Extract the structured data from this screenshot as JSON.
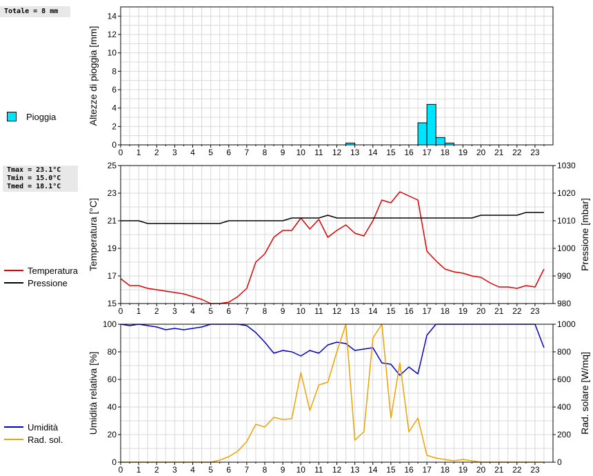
{
  "rain_box": {
    "text": "Totale = 8 mm"
  },
  "temp_box": {
    "tmax": "Tmax = 23.1°C",
    "tmin": "Tmin = 15.0°C",
    "tmed": "Tmed = 18.1°C"
  },
  "legend": {
    "rain": "Pioggia",
    "temperature": "Temperatura",
    "pressure": "Pressione",
    "humidity": "Umidità",
    "solar": "Rad. sol."
  },
  "colors": {
    "rain": "#00e5ff",
    "temperature": "#dd0000",
    "pressure": "#000000",
    "humidity": "#0000c0",
    "solar": "#f0a000",
    "grid": "#d8d8d8"
  },
  "chart_data": [
    {
      "type": "bar",
      "ylabel": "Altezze di pioggia [mm]",
      "x_ticks": [
        "0",
        "1",
        "2",
        "3",
        "4",
        "5",
        "6",
        "7",
        "8",
        "9",
        "10",
        "11",
        "12",
        "13",
        "14",
        "15",
        "16",
        "17",
        "18",
        "19",
        "20",
        "21",
        "22",
        "23"
      ],
      "xlim": [
        0,
        24
      ],
      "ylim": [
        0,
        15
      ],
      "y_ticks": [
        0,
        2,
        4,
        6,
        8,
        10,
        12,
        14
      ],
      "series": [
        {
          "name": "Pioggia",
          "x": [
            12.5,
            16.5,
            17.0,
            17.5,
            18.0
          ],
          "values": [
            0.2,
            2.4,
            4.4,
            0.8,
            0.2
          ]
        }
      ],
      "bar_width": 0.5
    },
    {
      "type": "line",
      "ylabel": "Temperatura [°C]",
      "y2label": "Pressione [mbar]",
      "x_ticks": [
        "0",
        "1",
        "2",
        "3",
        "4",
        "5",
        "6",
        "7",
        "8",
        "9",
        "10",
        "11",
        "12",
        "13",
        "14",
        "15",
        "16",
        "17",
        "18",
        "19",
        "20",
        "21",
        "22",
        "23"
      ],
      "xlim": [
        0,
        24
      ],
      "ylim": [
        15,
        25
      ],
      "y_ticks": [
        15,
        17,
        19,
        21,
        23,
        25
      ],
      "y2lim": [
        980,
        1030
      ],
      "y2_ticks": [
        980,
        990,
        1000,
        1010,
        1020,
        1030
      ],
      "series": [
        {
          "name": "Temperatura",
          "axis": "left",
          "x": [
            0,
            0.5,
            1,
            1.5,
            2,
            2.5,
            3,
            3.5,
            4,
            4.5,
            5,
            5.5,
            6,
            6.5,
            7,
            7.5,
            8,
            8.5,
            9,
            9.5,
            10,
            10.5,
            11,
            11.5,
            12,
            12.5,
            13,
            13.5,
            14,
            14.5,
            15,
            15.5,
            16,
            16.5,
            17,
            17.5,
            18,
            18.5,
            19,
            19.5,
            20,
            20.5,
            21,
            21.5,
            22,
            22.5,
            23,
            23.5
          ],
          "values": [
            16.8,
            16.3,
            16.3,
            16.1,
            16.0,
            15.9,
            15.8,
            15.7,
            15.5,
            15.3,
            15.0,
            15.0,
            15.1,
            15.5,
            16.1,
            18.0,
            18.6,
            19.8,
            20.3,
            20.3,
            21.2,
            20.4,
            21.1,
            19.8,
            20.3,
            20.7,
            20.1,
            19.9,
            21.0,
            22.5,
            22.3,
            23.1,
            22.8,
            22.5,
            18.8,
            18.1,
            17.5,
            17.3,
            17.2,
            17.0,
            16.9,
            16.5,
            16.2,
            16.2,
            16.1,
            16.3,
            16.2,
            17.5
          ]
        },
        {
          "name": "Pressione",
          "axis": "right",
          "x": [
            0,
            0.5,
            1,
            1.5,
            2,
            2.5,
            3,
            3.5,
            4,
            4.5,
            5,
            5.5,
            6,
            6.5,
            7,
            7.5,
            8,
            8.5,
            9,
            9.5,
            10,
            10.5,
            11,
            11.5,
            12,
            12.5,
            13,
            13.5,
            14,
            14.5,
            15,
            15.5,
            16,
            16.5,
            17,
            17.5,
            18,
            18.5,
            19,
            19.5,
            20,
            20.5,
            21,
            21.5,
            22,
            22.5,
            23,
            23.5
          ],
          "values": [
            1010,
            1010,
            1010,
            1009,
            1009,
            1009,
            1009,
            1009,
            1009,
            1009,
            1009,
            1009,
            1010,
            1010,
            1010,
            1010,
            1010,
            1010,
            1010,
            1011,
            1011,
            1011,
            1011,
            1012,
            1011,
            1011,
            1011,
            1011,
            1011,
            1011,
            1011,
            1011,
            1011,
            1011,
            1011,
            1011,
            1011,
            1011,
            1011,
            1011,
            1012,
            1012,
            1012,
            1012,
            1012,
            1013,
            1013,
            1013
          ]
        }
      ]
    },
    {
      "type": "line",
      "ylabel": "Umidità relativa [%]",
      "y2label": "Rad. solare [W/mq]",
      "x_ticks": [
        "0",
        "1",
        "2",
        "3",
        "4",
        "5",
        "6",
        "7",
        "8",
        "9",
        "10",
        "11",
        "12",
        "13",
        "14",
        "15",
        "16",
        "17",
        "18",
        "19",
        "20",
        "21",
        "22",
        "23"
      ],
      "xlim": [
        0,
        24
      ],
      "ylim": [
        0,
        100
      ],
      "y_ticks": [
        0,
        20,
        40,
        60,
        80,
        100
      ],
      "y2lim": [
        0,
        1000
      ],
      "y2_ticks": [
        0,
        200,
        400,
        600,
        800,
        1000
      ],
      "series": [
        {
          "name": "Umidità",
          "axis": "left",
          "x": [
            0,
            0.5,
            1,
            1.5,
            2,
            2.5,
            3,
            3.5,
            4,
            4.5,
            5,
            5.5,
            6,
            6.5,
            7,
            7.5,
            8,
            8.5,
            9,
            9.5,
            10,
            10.5,
            11,
            11.5,
            12,
            12.5,
            13,
            13.5,
            14,
            14.5,
            15,
            15.5,
            16,
            16.5,
            17,
            17.5,
            18,
            18.5,
            19,
            19.5,
            20,
            20.5,
            21,
            21.5,
            22,
            22.5,
            23,
            23.5
          ],
          "values": [
            100,
            99,
            100,
            99,
            98,
            96,
            97,
            96,
            97,
            98,
            100,
            100,
            100,
            100,
            99,
            94,
            87,
            79,
            81,
            80,
            77,
            81,
            79,
            85,
            87,
            86,
            81,
            82,
            83,
            72,
            71,
            63,
            69,
            64,
            92,
            100,
            100,
            100,
            100,
            100,
            100,
            100,
            100,
            100,
            100,
            100,
            100,
            83
          ]
        },
        {
          "name": "Rad. sol.",
          "axis": "right",
          "x": [
            0,
            0.5,
            1,
            1.5,
            2,
            2.5,
            3,
            3.5,
            4,
            4.5,
            5,
            5.5,
            6,
            6.5,
            7,
            7.5,
            8,
            8.5,
            9,
            9.5,
            10,
            10.5,
            11,
            11.5,
            12,
            12.5,
            13,
            13.5,
            14,
            14.5,
            15,
            15.5,
            16,
            16.5,
            17,
            17.5,
            18,
            18.5,
            19,
            19.5,
            20,
            20.5,
            21,
            21.5,
            22,
            22.5,
            23,
            23.5
          ],
          "values": [
            0,
            0,
            0,
            0,
            0,
            0,
            0,
            0,
            0,
            0,
            0,
            15,
            40,
            80,
            150,
            275,
            255,
            325,
            310,
            315,
            650,
            375,
            560,
            580,
            800,
            1000,
            160,
            220,
            900,
            1000,
            320,
            720,
            220,
            320,
            50,
            30,
            20,
            10,
            20,
            10,
            0,
            0,
            0,
            0,
            0,
            0,
            0,
            0
          ]
        }
      ]
    }
  ]
}
